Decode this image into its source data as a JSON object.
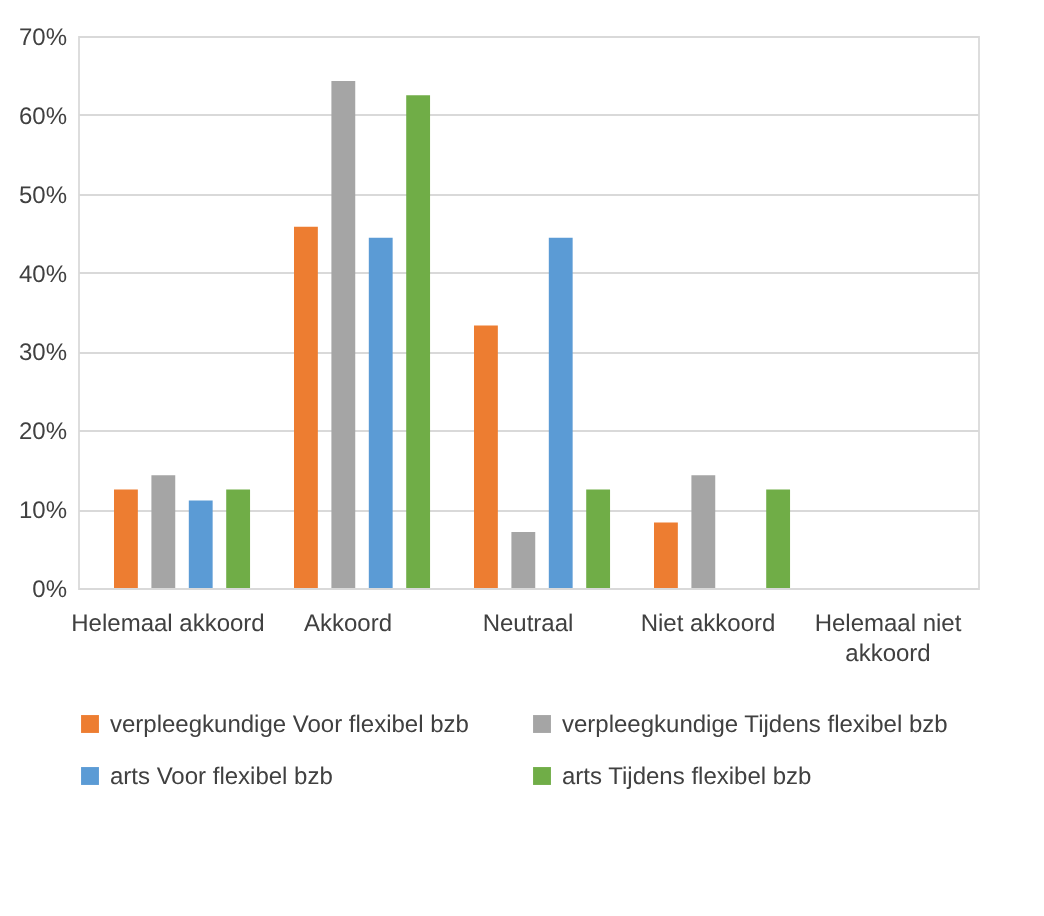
{
  "chart_data": {
    "type": "bar",
    "categories": [
      "Helemaal akkoord",
      "Akkoord",
      "Neutraal",
      "Niet akkoord",
      "Helemaal niet akkoord"
    ],
    "series": [
      {
        "name": "verpleegkundige Voor flexibel bzb",
        "color": "#ed7d31",
        "values": [
          12.5,
          45.8,
          33.3,
          8.3,
          0
        ]
      },
      {
        "name": "verpleegkundige Tijdens flexibel bzb",
        "color": "#a5a5a5",
        "values": [
          14.3,
          64.3,
          7.1,
          14.3,
          0
        ]
      },
      {
        "name": "arts Voor flexibel bzb",
        "color": "#5b9bd5",
        "values": [
          11.1,
          44.4,
          44.4,
          0,
          0
        ]
      },
      {
        "name": "arts Tijdens flexibel bzb",
        "color": "#70ad47",
        "values": [
          12.5,
          62.5,
          12.5,
          12.5,
          0
        ]
      }
    ],
    "ylim": [
      0,
      70
    ],
    "yticks": [
      {
        "value": 0,
        "label": "0%"
      },
      {
        "value": 10,
        "label": "10%"
      },
      {
        "value": 20,
        "label": "20%"
      },
      {
        "value": 30,
        "label": "30%"
      },
      {
        "value": 40,
        "label": "40%"
      },
      {
        "value": 50,
        "label": "50%"
      },
      {
        "value": 60,
        "label": "60%"
      },
      {
        "value": 70,
        "label": "70%"
      }
    ],
    "grid": "y",
    "legend": "bottom"
  }
}
